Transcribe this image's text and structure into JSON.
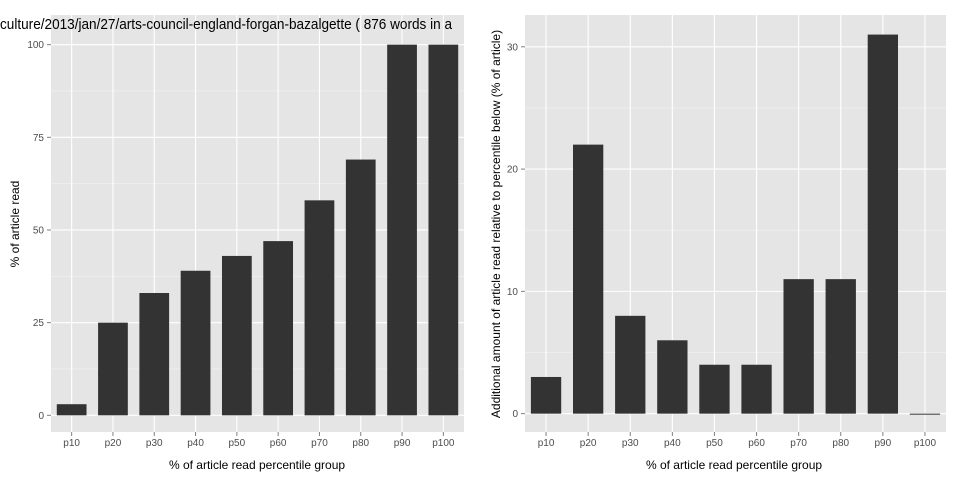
{
  "chart_data": [
    {
      "type": "bar",
      "title": "culture/2013/jan/27/arts-council-england-forgan-bazalgette ( 876 words in a",
      "xlabel": "% of article read percentile group",
      "ylabel": "% of article read",
      "categories": [
        "p10",
        "p20",
        "p30",
        "p40",
        "p50",
        "p60",
        "p70",
        "p80",
        "p90",
        "p100"
      ],
      "values": [
        3,
        25,
        33,
        39,
        43,
        47,
        58,
        69,
        100,
        100
      ],
      "yticks": [
        0,
        25,
        50,
        75,
        100
      ],
      "ylim": [
        -4.5,
        108
      ],
      "grid": true,
      "bar_color": "#333333",
      "panel_color": "#e5e5e5"
    },
    {
      "type": "bar",
      "title": "",
      "xlabel": "% of article read percentile group",
      "ylabel": "Additional amount of article read relative to percentile below (% of article)",
      "categories": [
        "p10",
        "p20",
        "p30",
        "p40",
        "p50",
        "p60",
        "p70",
        "p80",
        "p90",
        "p100"
      ],
      "values": [
        3,
        22,
        8,
        6,
        4,
        4,
        11,
        11,
        31,
        0
      ],
      "yticks": [
        0,
        10,
        20,
        30
      ],
      "ylim": [
        -1.5,
        32.6
      ],
      "grid": true,
      "bar_color": "#333333",
      "panel_color": "#e5e5e5"
    }
  ]
}
